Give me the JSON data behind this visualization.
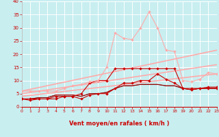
{
  "xlabel": "Vent moyen/en rafales ( km/h )",
  "bg_color": "#c8eef0",
  "grid_color": "#ffffff",
  "xlim": [
    0,
    23
  ],
  "ylim": [
    0,
    40
  ],
  "xticks": [
    0,
    1,
    2,
    3,
    4,
    5,
    6,
    7,
    8,
    9,
    10,
    11,
    12,
    13,
    14,
    15,
    16,
    17,
    18,
    19,
    20,
    21,
    22,
    23
  ],
  "yticks": [
    0,
    5,
    10,
    15,
    20,
    25,
    30,
    35,
    40
  ],
  "lines": [
    {
      "x": [
        0,
        1,
        2,
        3,
        4,
        5,
        6,
        7,
        8,
        9,
        10,
        11,
        12,
        13,
        14,
        15,
        16,
        17,
        18,
        19,
        20,
        21,
        22,
        23
      ],
      "y": [
        6,
        6,
        6,
        6,
        6,
        7,
        8,
        8.5,
        9.5,
        10,
        15,
        28,
        26,
        25.5,
        30,
        36,
        30,
        21.5,
        21,
        10,
        9.5,
        10.5,
        13,
        12.5
      ],
      "color": "#ffaaaa",
      "marker": "D",
      "markersize": 2.0,
      "linewidth": 0.8,
      "zorder": 6
    },
    {
      "x": [
        0,
        1,
        2,
        3,
        4,
        5,
        6,
        7,
        8,
        9,
        10,
        11,
        12,
        13,
        14,
        15,
        16,
        17,
        18,
        19,
        20,
        21,
        22,
        23
      ],
      "y": [
        3,
        3,
        3,
        3,
        3,
        4,
        4,
        5,
        9,
        10,
        10,
        14.5,
        14.5,
        14.5,
        14.5,
        14.5,
        14.5,
        14.5,
        14.5,
        7,
        7,
        7,
        7.5,
        7.5
      ],
      "color": "#cc0000",
      "marker": "D",
      "markersize": 2.0,
      "linewidth": 0.8,
      "zorder": 5
    },
    {
      "x": [
        0,
        1,
        2,
        3,
        4,
        5,
        6,
        7,
        8,
        9,
        10,
        11,
        12,
        13,
        14,
        15,
        16,
        17,
        18,
        19,
        20,
        21,
        22,
        23
      ],
      "y": [
        3,
        2.5,
        3,
        3,
        4,
        4,
        4,
        3,
        4.5,
        5,
        5,
        7,
        9,
        9,
        10,
        10,
        12.5,
        10.5,
        9,
        7,
        6.5,
        7,
        7,
        7
      ],
      "color": "#cc0000",
      "marker": "D",
      "markersize": 2.0,
      "linewidth": 0.8,
      "zorder": 5
    },
    {
      "x": [
        0,
        1,
        2,
        3,
        4,
        5,
        6,
        7,
        8,
        9,
        10,
        11,
        12,
        13,
        14,
        15,
        16,
        17,
        18,
        19,
        20,
        21,
        22,
        23
      ],
      "y": [
        3,
        3,
        3.5,
        3.5,
        4.5,
        4.5,
        4.5,
        4,
        5,
        5,
        5.5,
        7,
        8,
        8,
        8.5,
        8.5,
        8.5,
        8,
        8,
        7,
        6.5,
        7,
        7,
        7
      ],
      "color": "#880000",
      "marker": null,
      "linewidth": 0.8,
      "zorder": 4
    },
    {
      "x": [
        0,
        1,
        2,
        3,
        4,
        5,
        6,
        7,
        8,
        9,
        10,
        11,
        12,
        13,
        14,
        15,
        16,
        17,
        18,
        19,
        20,
        21,
        22,
        23
      ],
      "y": [
        3,
        3,
        3.5,
        3.5,
        4.5,
        4.5,
        4.5,
        4,
        5,
        5,
        5.5,
        7,
        8,
        8,
        8.5,
        8.5,
        8.5,
        8,
        8,
        7,
        6.5,
        7,
        7,
        7
      ],
      "color": "#cc0000",
      "marker": null,
      "linewidth": 0.6,
      "zorder": 3
    },
    {
      "x": [
        0,
        23
      ],
      "y": [
        6,
        21.5
      ],
      "color": "#ffaaaa",
      "marker": null,
      "linewidth": 1.2,
      "zorder": 2
    },
    {
      "x": [
        0,
        23
      ],
      "y": [
        5,
        16
      ],
      "color": "#ffaaaa",
      "marker": null,
      "linewidth": 1.2,
      "zorder": 2
    },
    {
      "x": [
        0,
        23
      ],
      "y": [
        4,
        12.5
      ],
      "color": "#ffaaaa",
      "marker": null,
      "linewidth": 1.2,
      "zorder": 2
    }
  ],
  "arrow_color": "#cc0000",
  "tick_label_color": "#cc0000",
  "axis_label_color": "#cc0000"
}
